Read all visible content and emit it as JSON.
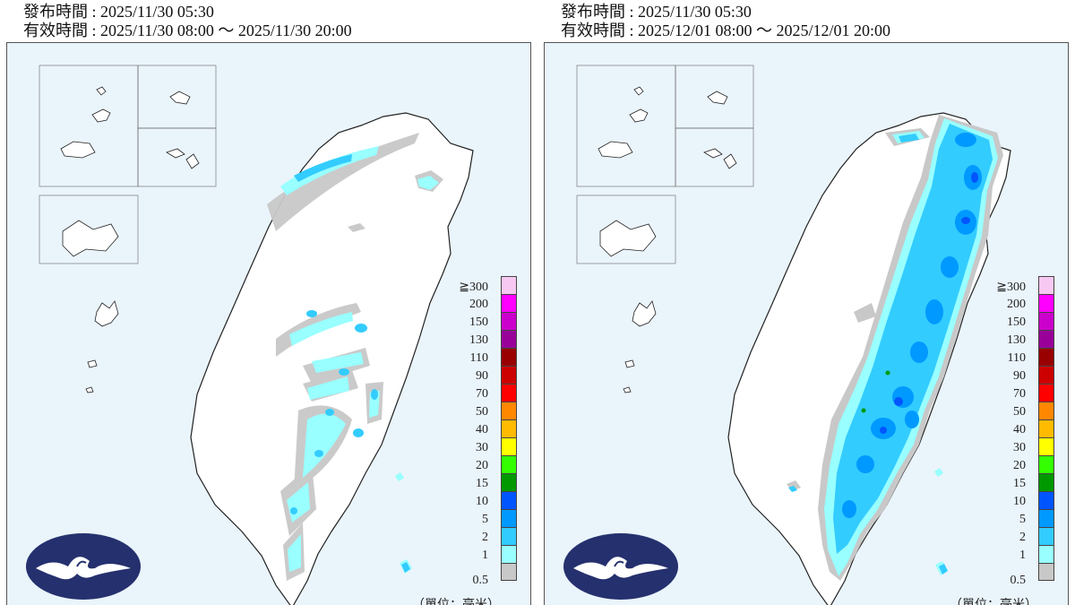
{
  "panels": [
    {
      "issue_label": "發布時間 : 2025/11/30 05:30",
      "valid_label": "有效時間 : 2025/11/30 08:00 ～ 2025/11/30 20:00"
    },
    {
      "issue_label": "發布時間 : 2025/11/30 05:30",
      "valid_label": "有效時間 : 2025/12/01 08:00 ～ 2025/12/01 20:00"
    }
  ],
  "legend": {
    "top_symbol": "≧",
    "levels": [
      "300",
      "200",
      "150",
      "130",
      "110",
      "90",
      "70",
      "50",
      "40",
      "30",
      "20",
      "15",
      "10",
      "5",
      "2",
      "1",
      "0.5"
    ],
    "colors": [
      "#f7c8f2",
      "#ff00ff",
      "#cc00cc",
      "#990099",
      "#990000",
      "#cc0000",
      "#ff0000",
      "#ff8800",
      "#ffbb00",
      "#ffff00",
      "#33ff00",
      "#009900",
      "#0055ff",
      "#0099ff",
      "#33ccff",
      "#99ffff",
      "#c8c8c8"
    ],
    "unit": "（單位：毫米）"
  },
  "colors": {
    "ocean": "#eaf4fb",
    "land": "#ffffff",
    "border": "#222222",
    "logo_fill": "#25306e"
  }
}
